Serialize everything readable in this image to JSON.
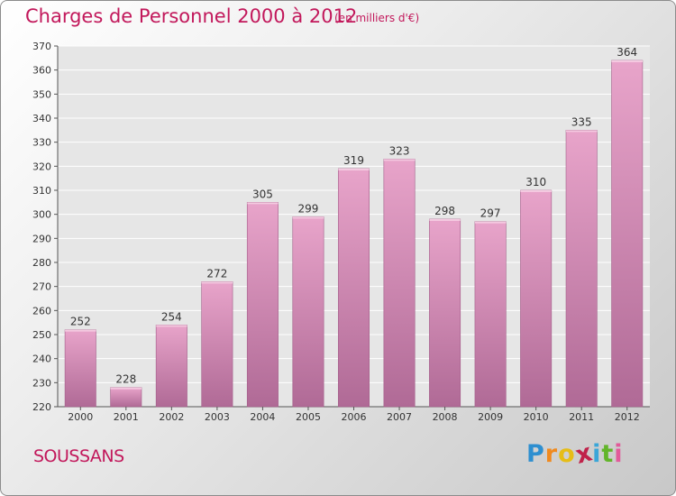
{
  "title": "Charges de Personnel 2000 à 2012",
  "subtitle": "(en milliers d'€)",
  "commune": "SOUSSANS",
  "logo": {
    "letters": [
      "P",
      "r",
      "o",
      "x",
      "i",
      "t",
      "i"
    ],
    "colors": [
      "#2e8fd0",
      "#f08a1e",
      "#e6bd17",
      "#c0224a",
      "#3aa6d8",
      "#62b52a",
      "#e25a9a"
    ]
  },
  "colors": {
    "bar_top": "#e8a4ca",
    "bar_bottom": "#b06a96",
    "plot_bg": "#e6e6e6",
    "grid": "#ffffff",
    "title": "#c2185b"
  },
  "chart_data": {
    "type": "bar",
    "title": "Charges de Personnel 2000 à 2012",
    "subtitle": "(en milliers d'€)",
    "categories": [
      "2000",
      "2001",
      "2002",
      "2003",
      "2004",
      "2005",
      "2006",
      "2007",
      "2008",
      "2009",
      "2010",
      "2011",
      "2012"
    ],
    "values": [
      252,
      228,
      254,
      272,
      305,
      299,
      319,
      323,
      298,
      297,
      310,
      335,
      364
    ],
    "ylim": [
      220,
      370
    ],
    "yticks": [
      220,
      230,
      240,
      250,
      260,
      270,
      280,
      290,
      300,
      310,
      320,
      330,
      340,
      350,
      360,
      370
    ],
    "grid": true,
    "data_labels": true
  }
}
